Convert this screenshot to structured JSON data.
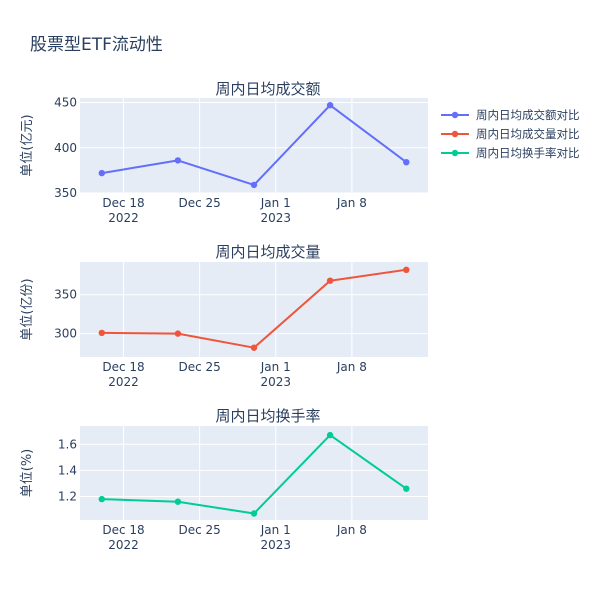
{
  "title": "股票型ETF流动性",
  "colors": {
    "background": "#ffffff",
    "plot_bg": "#e5ecf6",
    "grid": "#ffffff",
    "text": "#2a3f5f"
  },
  "legend": {
    "placement": "top-right",
    "items": [
      "周内日均成交额对比",
      "周内日均成交量对比",
      "周内日均换手率对比"
    ]
  },
  "chart_data": [
    {
      "type": "line",
      "title": "周内日均成交额",
      "ylabel": "单位(亿元)",
      "xlabel": "",
      "x": [
        "2022-12-16",
        "2022-12-23",
        "2022-12-30",
        "2023-01-06",
        "2023-01-13"
      ],
      "xlim": [
        "2022-12-14",
        "2023-01-15"
      ],
      "xticks": [
        {
          "date": "2022-12-18",
          "line1": "Dec 18",
          "line2": "2022"
        },
        {
          "date": "2022-12-25",
          "line1": "Dec 25",
          "line2": ""
        },
        {
          "date": "2023-01-01",
          "line1": "Jan 1",
          "line2": "2023"
        },
        {
          "date": "2023-01-08",
          "line1": "Jan 8",
          "line2": ""
        }
      ],
      "ylim": [
        350,
        455
      ],
      "yticks": [
        350,
        400,
        450
      ],
      "grid": true,
      "series": [
        {
          "name": "周内日均成交额对比",
          "color": "#636efa",
          "values": [
            372,
            386,
            359,
            447,
            384
          ]
        }
      ]
    },
    {
      "type": "line",
      "title": "周内日均成交量",
      "ylabel": "单位(亿份)",
      "xlabel": "",
      "x": [
        "2022-12-16",
        "2022-12-23",
        "2022-12-30",
        "2023-01-06",
        "2023-01-13"
      ],
      "xlim": [
        "2022-12-14",
        "2023-01-15"
      ],
      "xticks": [
        {
          "date": "2022-12-18",
          "line1": "Dec 18",
          "line2": "2022"
        },
        {
          "date": "2022-12-25",
          "line1": "Dec 25",
          "line2": ""
        },
        {
          "date": "2023-01-01",
          "line1": "Jan 1",
          "line2": "2023"
        },
        {
          "date": "2023-01-08",
          "line1": "Jan 8",
          "line2": ""
        }
      ],
      "ylim": [
        270,
        392
      ],
      "yticks": [
        300,
        350
      ],
      "grid": true,
      "series": [
        {
          "name": "周内日均成交量对比",
          "color": "#ef553b",
          "values": [
            301,
            300,
            282,
            368,
            382
          ]
        }
      ]
    },
    {
      "type": "line",
      "title": "周内日均换手率",
      "ylabel": "单位(%)",
      "xlabel": "",
      "x": [
        "2022-12-16",
        "2022-12-23",
        "2022-12-30",
        "2023-01-06",
        "2023-01-13"
      ],
      "xlim": [
        "2022-12-14",
        "2023-01-15"
      ],
      "xticks": [
        {
          "date": "2022-12-18",
          "line1": "Dec 18",
          "line2": "2022"
        },
        {
          "date": "2022-12-25",
          "line1": "Dec 25",
          "line2": ""
        },
        {
          "date": "2023-01-01",
          "line1": "Jan 1",
          "line2": "2023"
        },
        {
          "date": "2023-01-08",
          "line1": "Jan 8",
          "line2": ""
        }
      ],
      "ylim": [
        1.02,
        1.74
      ],
      "yticks": [
        1.2,
        1.4,
        1.6
      ],
      "grid": true,
      "series": [
        {
          "name": "周内日均换手率对比",
          "color": "#00cc96",
          "values": [
            1.18,
            1.16,
            1.07,
            1.67,
            1.26
          ]
        }
      ]
    }
  ]
}
